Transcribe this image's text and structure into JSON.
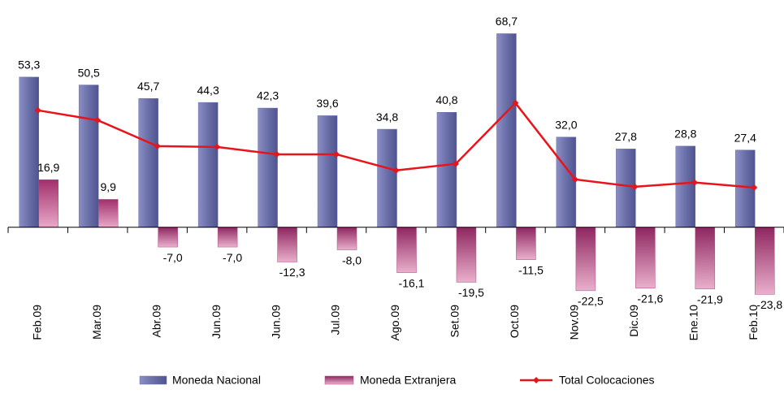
{
  "chart_data": {
    "type": "bar",
    "categories": [
      "Feb.09",
      "Mar.09",
      "Abr.09",
      "Jun.09",
      "Jun.09",
      "Jul.09",
      "Ago.09",
      "Set.09",
      "Oct.09",
      "Nov.09",
      "Dic.09",
      "Ene.10",
      "Feb.10"
    ],
    "ylim": [
      -26,
      72
    ],
    "series": [
      {
        "name": "Moneda Nacional",
        "type": "bar",
        "color": "#6b6fa8",
        "values": [
          53.3,
          50.5,
          45.7,
          44.3,
          42.3,
          39.6,
          34.8,
          40.8,
          68.7,
          32.0,
          27.8,
          28.8,
          27.4
        ],
        "value_labels": [
          "53,3",
          "50,5",
          "45,7",
          "44,3",
          "42,3",
          "39,6",
          "34,8",
          "40,8",
          "68,7",
          "32,0",
          "27,8",
          "28,8",
          "27,4"
        ]
      },
      {
        "name": "Moneda Extranjera",
        "type": "bar",
        "color": "#b04a86",
        "values": [
          16.9,
          9.9,
          -7.0,
          -7.0,
          -12.3,
          -8.0,
          -16.1,
          -19.5,
          -11.5,
          -22.5,
          -21.6,
          -21.9,
          -23.8
        ],
        "value_labels": [
          "16,9",
          "9,9",
          "-7,0",
          "-7,0",
          "-12,3",
          "-8,0",
          "-16,1",
          "-19,5",
          "-11,5",
          "-22,5",
          "-21,6",
          "-21,9",
          "-23,8"
        ]
      },
      {
        "name": "Total Colocaciones",
        "type": "line",
        "color": "#e8141b",
        "values": [
          41.5,
          38.0,
          28.8,
          28.5,
          25.9,
          25.9,
          20.2,
          22.5,
          44.1,
          17.0,
          14.4,
          15.9,
          14.1
        ]
      }
    ]
  }
}
